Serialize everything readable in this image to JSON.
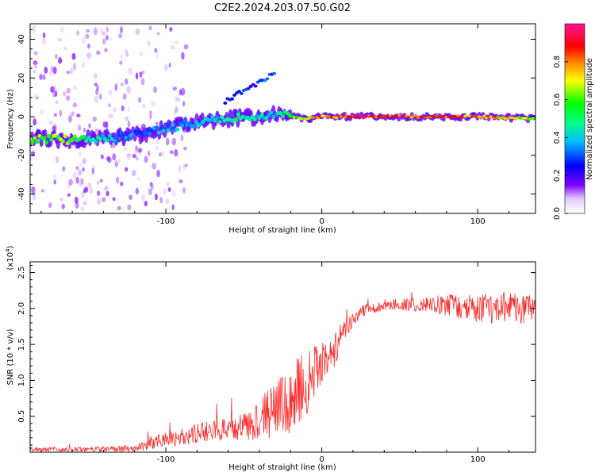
{
  "title": "C2E2.2024.203.07.50.G02",
  "chart_data": [
    {
      "type": "heatmap",
      "title": "",
      "xlabel": "Height of straight line (km)",
      "ylabel": "Frequency (Hz)",
      "xlim": [
        -187,
        137
      ],
      "ylim": [
        -50,
        48
      ],
      "xticks": [
        -100,
        0,
        100
      ],
      "yticks": [
        -40,
        -20,
        0,
        20,
        40
      ],
      "colorbar": {
        "label": "Normalized spectral amplitude",
        "range": [
          0,
          1
        ],
        "ticks": [
          "0.0",
          "0.2",
          "0.4",
          "0.6",
          "0.8"
        ],
        "colors": [
          "#ffffff",
          "#7f00ff",
          "#0000ff",
          "#00bfff",
          "#00ff80",
          "#00ff00",
          "#ffff00",
          "#ff8000",
          "#ff0000",
          "#ff1493"
        ]
      },
      "ridge": {
        "x": [
          -187,
          -160,
          -140,
          -120,
          -100,
          -80,
          -60,
          -40,
          -30,
          -20,
          -10,
          0,
          20,
          60,
          100,
          137
        ],
        "freq": [
          -11,
          -12,
          -11,
          -10,
          -6,
          -3,
          -1,
          0,
          2,
          0,
          -1,
          0,
          0,
          0,
          0,
          -1
        ],
        "amplitude": [
          0.75,
          0.65,
          0.45,
          0.35,
          0.4,
          0.45,
          0.5,
          0.45,
          0.45,
          0.6,
          0.85,
          0.9,
          0.95,
          0.95,
          0.9,
          0.7
        ]
      }
    },
    {
      "type": "line",
      "title": "",
      "xlabel": "Height of straight line (km)",
      "ylabel": "SNR (10 * v/v)",
      "yscale_label": "(x10",
      "yscale_exp": "4",
      "xlim": [
        -187,
        137
      ],
      "ylim": [
        0,
        2.65
      ],
      "xticks": [
        -100,
        0,
        100
      ],
      "yticks": [
        "0.5",
        "1.0",
        "1.5",
        "2.0",
        "2.5"
      ],
      "line_color": "#ff2a2a",
      "envelope": {
        "x": [
          -187,
          -150,
          -120,
          -110,
          -90,
          -70,
          -50,
          -40,
          -30,
          -20,
          -15,
          -10,
          -5,
          0,
          5,
          10,
          15,
          20,
          25,
          30,
          40,
          60,
          80,
          100,
          120,
          137
        ],
        "mean": [
          0.04,
          0.04,
          0.05,
          0.12,
          0.22,
          0.3,
          0.35,
          0.45,
          0.6,
          0.7,
          0.9,
          0.95,
          1.1,
          1.25,
          1.3,
          1.5,
          1.7,
          1.85,
          1.95,
          2.0,
          2.05,
          2.05,
          2.05,
          2.0,
          2.0,
          1.98
        ],
        "noise": [
          0.03,
          0.03,
          0.05,
          0.1,
          0.12,
          0.15,
          0.2,
          0.3,
          0.4,
          0.45,
          0.5,
          0.5,
          0.4,
          0.3,
          0.3,
          0.25,
          0.15,
          0.1,
          0.08,
          0.08,
          0.08,
          0.1,
          0.15,
          0.2,
          0.22,
          0.2
        ]
      }
    }
  ]
}
